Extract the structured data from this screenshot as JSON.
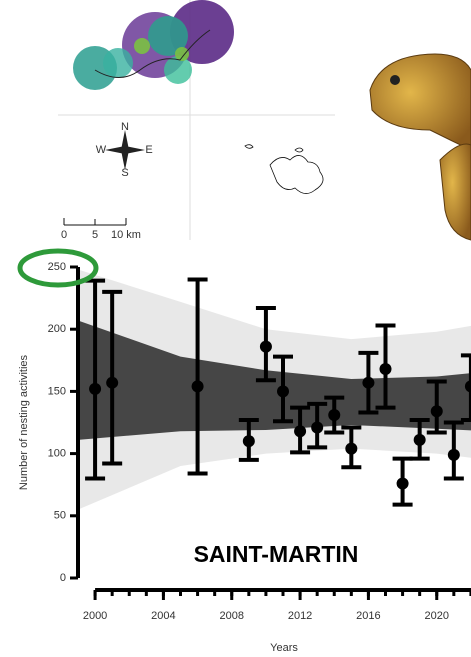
{
  "map": {
    "compass": [
      "N",
      "W",
      "E",
      "S"
    ],
    "scale_labels": [
      "0",
      "5",
      "10 km"
    ]
  },
  "chart_data": {
    "type": "errorbar",
    "annotation": "SAINT-MARTIN",
    "xlabel": "Years",
    "ylabel": "Number of nesting activities",
    "xlim": [
      1999,
      2023
    ],
    "ylim": [
      0,
      250
    ],
    "xticks": [
      2000,
      2004,
      2008,
      2012,
      2016,
      2020
    ],
    "xticks_minor": [
      2000,
      2001,
      2002,
      2003,
      2004,
      2005,
      2006,
      2007,
      2008,
      2009,
      2010,
      2011,
      2012,
      2013,
      2014,
      2015,
      2016,
      2017,
      2018,
      2019,
      2020,
      2021,
      2022
    ],
    "yticks": [
      0,
      50,
      100,
      150,
      200,
      250
    ],
    "bands": [
      {
        "color": "#e6e6e6",
        "x": [
          1999,
          2005,
          2010,
          2015,
          2020,
          2023
        ],
        "upper": [
          248,
          222,
          200,
          192,
          198,
          205
        ],
        "lower": [
          55,
          90,
          100,
          104,
          100,
          95
        ]
      },
      {
        "color": "#3d3d3d",
        "x": [
          1999,
          2005,
          2010,
          2015,
          2020,
          2023
        ],
        "upper": [
          207,
          178,
          167,
          160,
          162,
          166
        ],
        "lower": [
          111,
          118,
          119,
          123,
          120,
          118
        ]
      }
    ],
    "series": [
      {
        "color": "#000000",
        "x": [
          2000,
          2001,
          2006,
          2009,
          2010,
          2011,
          2012,
          2013,
          2014,
          2015,
          2016,
          2017,
          2018,
          2019,
          2020,
          2021,
          2022
        ],
        "values": [
          152,
          157,
          154,
          110,
          186,
          150,
          118,
          121,
          131,
          104,
          157,
          168,
          76,
          111,
          134,
          99,
          154
        ],
        "upper": [
          239,
          230,
          240,
          127,
          217,
          178,
          137,
          140,
          145,
          121,
          181,
          203,
          96,
          127,
          158,
          125,
          179
        ],
        "lower": [
          80,
          92,
          84,
          95,
          159,
          126,
          101,
          105,
          117,
          89,
          133,
          137,
          59,
          96,
          117,
          80,
          127
        ]
      }
    ]
  }
}
